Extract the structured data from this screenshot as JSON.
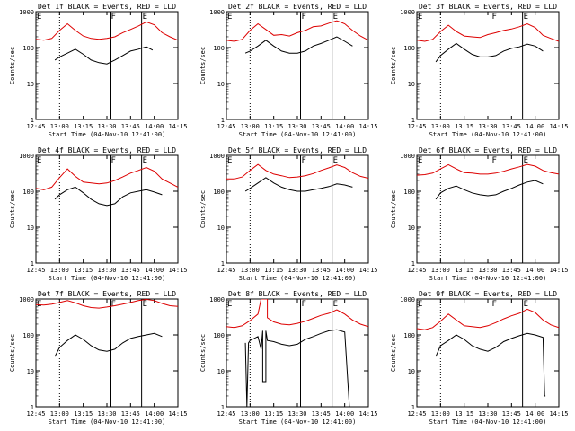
{
  "axes": {
    "x_ticks": [
      "12:45",
      "13:00",
      "13:15",
      "13:30",
      "13:45",
      "14:00",
      "14:15"
    ],
    "x_tick_values": [
      0,
      15,
      30,
      45,
      60,
      75,
      90
    ],
    "xlim": [
      0,
      90
    ],
    "y_ticks": [
      "1",
      "10",
      "100",
      "1000"
    ],
    "ylim": [
      1,
      1000
    ],
    "ylabel": "Counts/sec",
    "xlabel": "Start Time (04-Nov-10 12:41:00)",
    "scale": "log"
  },
  "markers": [
    {
      "label": "E",
      "minute": 0,
      "style": "dotted-free"
    },
    {
      "label": "",
      "minute": 15,
      "style": "dotted"
    },
    {
      "label": "F",
      "minute": 47,
      "style": "solid"
    },
    {
      "label": "E",
      "minute": 67,
      "style": "solid"
    }
  ],
  "colors": {
    "events": "#000000",
    "lld": "#dd0000",
    "axis": "#000000"
  },
  "chart_data": [
    {
      "type": "line",
      "title": "Det 1f BLACK = Events, RED = LLD",
      "xlabel": "Start Time (04-Nov-10 12:41:00)",
      "ylabel": "Counts/sec",
      "ylim": [
        1,
        1000
      ],
      "series": [
        {
          "name": "LLD",
          "x": [
            0,
            5,
            10,
            15,
            20,
            25,
            30,
            35,
            40,
            45,
            50,
            55,
            60,
            65,
            70,
            75,
            80,
            85,
            90
          ],
          "y": [
            170,
            160,
            180,
            300,
            460,
            300,
            210,
            180,
            170,
            180,
            200,
            260,
            320,
            400,
            520,
            430,
            260,
            200,
            160
          ]
        },
        {
          "name": "Events",
          "x": [
            12,
            15,
            20,
            25,
            30,
            35,
            40,
            45,
            50,
            55,
            60,
            65,
            70,
            74
          ],
          "y": [
            45,
            55,
            70,
            90,
            65,
            45,
            38,
            35,
            45,
            60,
            80,
            90,
            105,
            85
          ]
        }
      ]
    },
    {
      "type": "line",
      "title": "Det 2f BLACK = Events, RED = LLD",
      "xlabel": "Start Time (04-Nov-10 12:41:00)",
      "ylabel": "Counts/sec",
      "ylim": [
        1,
        1000
      ],
      "series": [
        {
          "name": "LLD",
          "x": [
            0,
            5,
            10,
            15,
            20,
            25,
            30,
            35,
            40,
            45,
            50,
            55,
            60,
            65,
            70,
            75,
            80,
            85,
            90
          ],
          "y": [
            160,
            150,
            170,
            300,
            460,
            320,
            220,
            230,
            210,
            260,
            300,
            380,
            400,
            480,
            560,
            460,
            300,
            210,
            160
          ]
        },
        {
          "name": "Events",
          "x": [
            12,
            15,
            20,
            25,
            30,
            35,
            40,
            45,
            50,
            55,
            60,
            65,
            70,
            75,
            80
          ],
          "y": [
            70,
            80,
            110,
            160,
            110,
            80,
            70,
            70,
            80,
            110,
            130,
            160,
            200,
            150,
            110
          ]
        }
      ]
    },
    {
      "type": "line",
      "title": "Det 3f BLACK = Events, RED = LLD",
      "xlabel": "Start Time (04-Nov-10 12:41:00)",
      "ylabel": "Counts/sec",
      "ylim": [
        1,
        1000
      ],
      "series": [
        {
          "name": "LLD",
          "x": [
            0,
            5,
            10,
            15,
            20,
            25,
            30,
            35,
            40,
            45,
            50,
            55,
            60,
            65,
            70,
            75,
            80,
            85,
            90
          ],
          "y": [
            160,
            150,
            170,
            280,
            420,
            280,
            210,
            200,
            190,
            230,
            260,
            300,
            330,
            380,
            460,
            360,
            220,
            180,
            150
          ]
        },
        {
          "name": "Events",
          "x": [
            12,
            15,
            20,
            25,
            30,
            35,
            40,
            45,
            50,
            55,
            60,
            65,
            70,
            75,
            80
          ],
          "y": [
            40,
            60,
            90,
            130,
            90,
            65,
            55,
            55,
            60,
            80,
            95,
            105,
            125,
            110,
            80
          ]
        }
      ]
    },
    {
      "type": "line",
      "title": "Det 4f BLACK = Events, RED = LLD",
      "xlabel": "Start Time (04-Nov-10 12:41:00)",
      "ylabel": "Counts/sec",
      "ylim": [
        1,
        1000
      ],
      "series": [
        {
          "name": "LLD",
          "x": [
            0,
            5,
            10,
            15,
            20,
            25,
            30,
            35,
            40,
            45,
            50,
            55,
            60,
            65,
            70,
            75,
            80,
            85,
            90
          ],
          "y": [
            120,
            110,
            130,
            240,
            420,
            260,
            180,
            170,
            160,
            170,
            200,
            250,
            320,
            380,
            460,
            360,
            220,
            170,
            130
          ]
        },
        {
          "name": "Events",
          "x": [
            12,
            15,
            20,
            25,
            30,
            35,
            40,
            45,
            50,
            55,
            60,
            65,
            70,
            75,
            80
          ],
          "y": [
            60,
            80,
            110,
            130,
            90,
            60,
            45,
            40,
            45,
            70,
            90,
            100,
            110,
            95,
            80
          ]
        }
      ]
    },
    {
      "type": "line",
      "title": "Det 5f BLACK = Events, RED = LLD",
      "xlabel": "Start Time (04-Nov-10 12:41:00)",
      "ylabel": "Counts/sec",
      "ylim": [
        1,
        1000
      ],
      "series": [
        {
          "name": "LLD",
          "x": [
            0,
            5,
            10,
            15,
            20,
            25,
            30,
            35,
            40,
            45,
            50,
            55,
            60,
            65,
            70,
            75,
            80,
            85,
            90
          ],
          "y": [
            220,
            220,
            250,
            380,
            560,
            380,
            300,
            270,
            240,
            250,
            270,
            310,
            380,
            450,
            540,
            460,
            330,
            260,
            230
          ]
        },
        {
          "name": "Events",
          "x": [
            12,
            15,
            20,
            25,
            30,
            35,
            40,
            45,
            50,
            55,
            60,
            65,
            70,
            75,
            80
          ],
          "y": [
            100,
            120,
            170,
            240,
            170,
            130,
            110,
            100,
            100,
            110,
            120,
            135,
            160,
            150,
            130
          ]
        }
      ]
    },
    {
      "type": "line",
      "title": "Det 6f BLACK = Events, RED = LLD",
      "xlabel": "Start Time (04-Nov-10 12:41:00)",
      "ylabel": "Counts/sec",
      "ylim": [
        1,
        1000
      ],
      "series": [
        {
          "name": "LLD",
          "x": [
            0,
            5,
            10,
            15,
            20,
            25,
            30,
            35,
            40,
            45,
            50,
            55,
            60,
            65,
            70,
            75,
            80,
            85,
            90
          ],
          "y": [
            280,
            290,
            320,
            420,
            550,
            420,
            330,
            320,
            300,
            300,
            320,
            360,
            420,
            480,
            560,
            500,
            380,
            330,
            300
          ]
        },
        {
          "name": "Events",
          "x": [
            12,
            15,
            20,
            25,
            30,
            35,
            40,
            45,
            50,
            55,
            60,
            65,
            70,
            75,
            80
          ],
          "y": [
            60,
            90,
            120,
            140,
            110,
            90,
            80,
            75,
            80,
            100,
            120,
            150,
            180,
            200,
            160
          ]
        }
      ]
    },
    {
      "type": "line",
      "title": "Det 7f BLACK = Events, RED = LLD",
      "xlabel": "Start Time (04-Nov-10 12:41:00)",
      "ylabel": "Counts/sec",
      "ylim": [
        1,
        1000
      ],
      "series": [
        {
          "name": "LLD",
          "x": [
            0,
            5,
            10,
            15,
            20,
            25,
            30,
            35,
            40,
            45,
            50,
            55,
            60,
            65,
            70,
            75,
            80,
            85,
            90
          ],
          "y": [
            700,
            680,
            720,
            800,
            900,
            780,
            650,
            580,
            560,
            600,
            650,
            720,
            800,
            900,
            980,
            900,
            750,
            650,
            620
          ]
        },
        {
          "name": "Events",
          "x": [
            12,
            15,
            20,
            25,
            30,
            35,
            40,
            45,
            50,
            55,
            60,
            65,
            70,
            75,
            80
          ],
          "y": [
            25,
            45,
            70,
            100,
            75,
            50,
            38,
            35,
            40,
            60,
            80,
            90,
            100,
            110,
            90
          ]
        }
      ]
    },
    {
      "type": "line",
      "title": "Det 8f BLACK = Events, RED = LLD",
      "xlabel": "Start Time (04-Nov-10 12:41:00)",
      "ylabel": "Counts/sec",
      "ylim": [
        1,
        1000
      ],
      "series": [
        {
          "name": "LLD",
          "x": [
            0,
            5,
            10,
            15,
            20,
            22,
            22,
            26,
            26,
            30,
            35,
            40,
            45,
            50,
            55,
            60,
            65,
            70,
            75,
            80,
            85,
            90
          ],
          "y": [
            170,
            160,
            180,
            250,
            380,
            1000,
            1000,
            1000,
            300,
            230,
            200,
            190,
            210,
            240,
            290,
            350,
            400,
            500,
            380,
            260,
            200,
            170
          ]
        },
        {
          "name": "Events",
          "x": [
            12,
            13,
            14,
            15,
            20,
            22,
            23,
            23,
            25,
            25,
            26,
            30,
            35,
            40,
            45,
            50,
            55,
            60,
            65,
            70,
            75,
            78
          ],
          "y": [
            60,
            1,
            60,
            70,
            90,
            40,
            130,
            5,
            5,
            130,
            70,
            65,
            55,
            50,
            55,
            75,
            90,
            110,
            130,
            140,
            120,
            1
          ]
        }
      ]
    },
    {
      "type": "line",
      "title": "Det 9f BLACK = Events, RED = LLD",
      "xlabel": "Start Time (04-Nov-10 12:41:00)",
      "ylabel": "Counts/sec",
      "ylim": [
        1,
        1000
      ],
      "series": [
        {
          "name": "LLD",
          "x": [
            0,
            5,
            10,
            15,
            20,
            25,
            30,
            35,
            40,
            45,
            50,
            55,
            60,
            65,
            70,
            75,
            80,
            85,
            90
          ],
          "y": [
            150,
            140,
            160,
            240,
            380,
            260,
            180,
            170,
            160,
            180,
            220,
            280,
            340,
            400,
            520,
            420,
            260,
            190,
            160
          ]
        },
        {
          "name": "Events",
          "x": [
            12,
            15,
            20,
            25,
            30,
            35,
            40,
            45,
            50,
            55,
            60,
            65,
            70,
            75,
            80,
            81,
            81.5
          ],
          "y": [
            25,
            50,
            70,
            100,
            75,
            50,
            40,
            35,
            45,
            65,
            80,
            95,
            110,
            100,
            85,
            2,
            2
          ]
        }
      ]
    }
  ]
}
